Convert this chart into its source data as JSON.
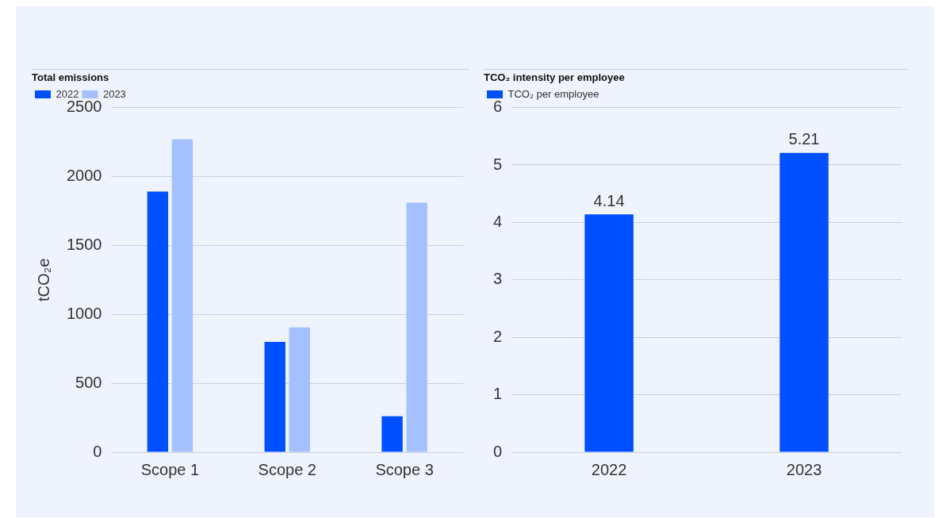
{
  "chart_data": [
    {
      "type": "bar",
      "title": "Total emissions",
      "ylabel": "tCO₂e",
      "categories": [
        "Scope 1",
        "Scope 2",
        "Scope 3"
      ],
      "series": [
        {
          "name": "2022",
          "color": "#0050ff",
          "values": [
            1890,
            800,
            260
          ]
        },
        {
          "name": "2023",
          "color": "#a4c0fd",
          "values": [
            2270,
            905,
            1810
          ]
        }
      ],
      "ylim": [
        0,
        2500
      ],
      "yticks": [
        0,
        500,
        1000,
        1500,
        2000,
        2500
      ],
      "grid": "y",
      "legend": "top left"
    },
    {
      "type": "bar",
      "title": "TCO₂ intensity per employee",
      "categories": [
        "2022",
        "2023"
      ],
      "series": [
        {
          "name": "TCO₂ per employee",
          "color": "#0050ff",
          "values": [
            4.14,
            5.21
          ]
        }
      ],
      "ylim": [
        0,
        6
      ],
      "yticks": [
        0,
        1,
        2,
        3,
        4,
        5,
        6
      ],
      "grid": "y",
      "legend": "top left",
      "data_labels": true
    }
  ]
}
